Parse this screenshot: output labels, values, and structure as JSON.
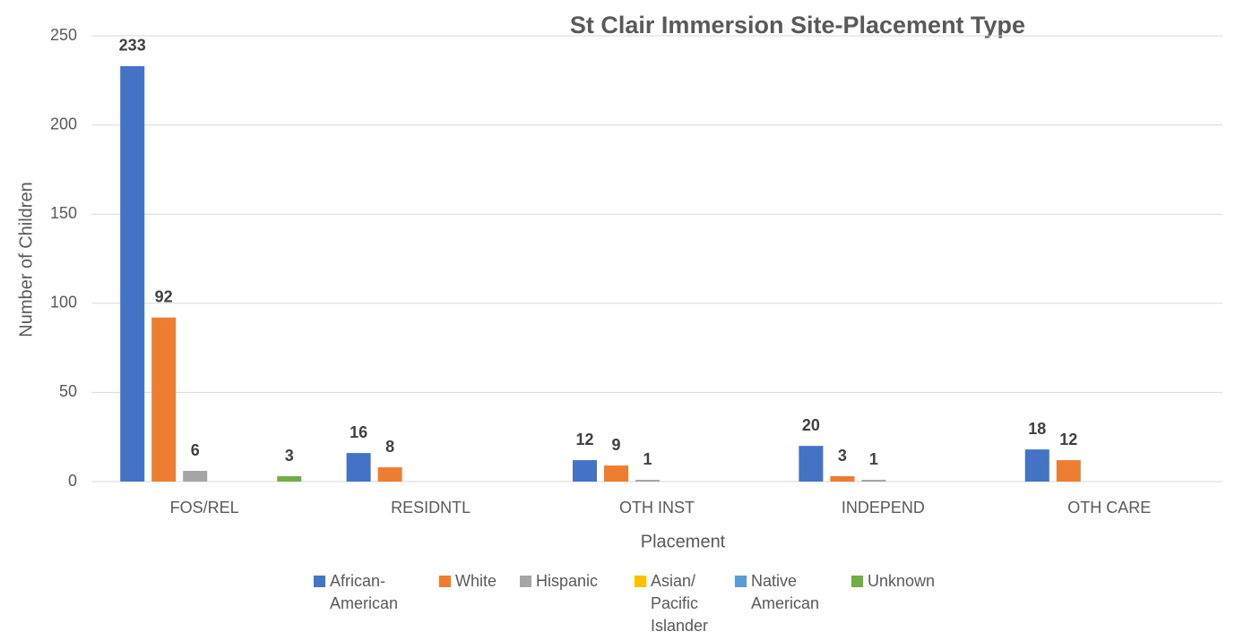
{
  "chart_data": {
    "type": "bar",
    "title": "St Clair Immersion Site-Placement Type",
    "x_label": "Placement",
    "y_label": "Number of Children",
    "categories": [
      "FOS/REL",
      "RESIDNTL",
      "OTH INST",
      "INDEPEND",
      "OTH CARE"
    ],
    "series": [
      {
        "name": "African-American",
        "color": "#4472c4",
        "values": [
          233,
          16,
          12,
          20,
          18
        ]
      },
      {
        "name": "White",
        "color": "#ed7d31",
        "values": [
          92,
          8,
          9,
          3,
          12
        ]
      },
      {
        "name": "Hispanic",
        "color": "#a5a5a5",
        "values": [
          6,
          0,
          1,
          1,
          0
        ]
      },
      {
        "name": "Asian/ Pacific Islander",
        "color": "#ffc000",
        "values": [
          0,
          0,
          0,
          0,
          0
        ]
      },
      {
        "name": "Native American",
        "color": "#5b9bd5",
        "values": [
          0,
          0,
          0,
          0,
          0
        ]
      },
      {
        "name": "Unknown",
        "color": "#70ad47",
        "values": [
          3,
          0,
          0,
          0,
          0
        ]
      }
    ],
    "ylim": [
      0,
      250
    ],
    "yticks": [
      0,
      50,
      100,
      150,
      200,
      250
    ],
    "grid": true,
    "legend": "bottom"
  }
}
